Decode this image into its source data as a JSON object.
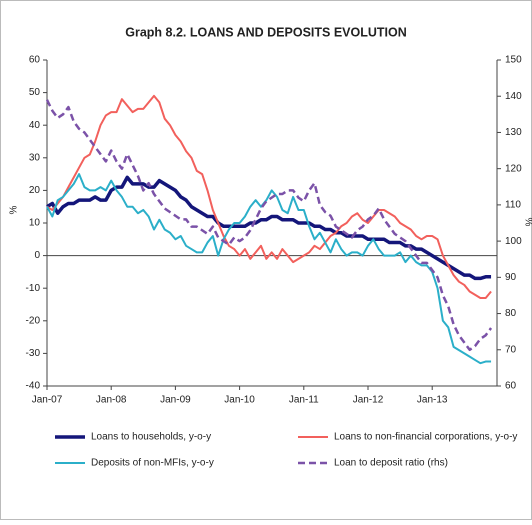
{
  "chart_data": {
    "type": "line",
    "title": "Graph 8.2. LOANS AND DEPOSITS EVOLUTION",
    "y_label": "%",
    "y2_label": "%",
    "categories": [
      "Jan-07",
      null,
      null,
      null,
      null,
      null,
      null,
      null,
      null,
      null,
      null,
      null,
      "Jan-08",
      null,
      null,
      null,
      null,
      null,
      null,
      null,
      null,
      null,
      null,
      null,
      "Jan-09",
      null,
      null,
      null,
      null,
      null,
      null,
      null,
      null,
      null,
      null,
      null,
      "Jan-10",
      null,
      null,
      null,
      null,
      null,
      null,
      null,
      null,
      null,
      null,
      null,
      "Jan-11",
      null,
      null,
      null,
      null,
      null,
      null,
      null,
      null,
      null,
      null,
      null,
      "Jan-12",
      null,
      null,
      null,
      null,
      null,
      null,
      null,
      null,
      null,
      null,
      null,
      "Jan-13",
      null,
      null,
      null,
      null,
      null,
      null,
      null,
      null,
      null,
      null,
      null
    ],
    "ylim": [
      -40,
      60
    ],
    "yticks": [
      -40,
      -30,
      -20,
      -10,
      0,
      10,
      20,
      30,
      40,
      50,
      60
    ],
    "y2lim": [
      60,
      150
    ],
    "y2ticks": [
      60,
      70,
      80,
      90,
      100,
      110,
      120,
      130,
      140,
      150
    ],
    "series": [
      {
        "name": "Loans to households, y-o-y",
        "color": "#14167a",
        "width": 3.5,
        "dashed": false,
        "values": [
          15,
          16,
          13,
          15,
          16,
          16,
          17,
          17,
          17,
          18,
          17,
          17,
          20,
          21,
          21,
          24,
          22,
          22,
          22,
          21,
          21,
          23,
          22,
          21,
          20,
          18,
          17,
          15,
          14,
          13,
          12,
          12,
          10,
          9,
          9,
          9,
          9,
          9,
          10,
          10,
          11,
          11,
          12,
          12,
          11,
          11,
          11,
          10,
          10,
          10,
          9,
          9,
          8,
          8,
          7,
          7,
          6,
          6,
          6,
          6,
          5,
          5,
          5,
          5,
          4,
          4,
          4,
          3,
          3,
          2,
          2,
          1,
          0,
          -1,
          -2,
          -3,
          -4,
          -5,
          -6,
          -6,
          -7,
          -7,
          -6.5,
          -6.5
        ]
      },
      {
        "name": "Loans to non-financial corporations, y-o-y",
        "color": "#f2605c",
        "width": 2,
        "dashed": false,
        "values": [
          15,
          14,
          16,
          18,
          21,
          24,
          27,
          30,
          31,
          35,
          40,
          43,
          44,
          44,
          48,
          46,
          44,
          45,
          45,
          47,
          49,
          47,
          42,
          40,
          37,
          35,
          32,
          30,
          26,
          25,
          20,
          14,
          10,
          6,
          3,
          2,
          0,
          2,
          -1,
          1,
          3,
          -1,
          1,
          -1,
          2,
          0,
          -2,
          -1,
          0,
          1,
          3,
          2,
          4,
          6,
          7,
          9,
          10,
          12,
          13,
          11,
          10,
          12,
          14,
          14,
          13,
          12,
          10,
          9,
          8,
          6,
          5,
          6,
          6,
          5,
          0,
          -3,
          -6,
          -8,
          -9,
          -11,
          -12,
          -13,
          -13,
          -11
        ]
      },
      {
        "name": "Deposits of non-MFIs, y-o-y",
        "color": "#2bafc9",
        "width": 2,
        "dashed": false,
        "values": [
          15,
          12,
          17,
          18,
          20,
          22,
          25,
          21,
          20,
          20,
          21,
          20,
          23,
          20,
          18,
          15,
          15,
          13,
          14,
          12,
          8,
          11,
          8,
          7,
          5,
          6,
          3,
          2,
          1,
          1,
          4,
          6,
          0,
          5,
          8,
          10,
          10,
          12,
          15,
          17,
          15,
          17,
          20,
          18,
          14,
          13,
          18,
          14,
          14,
          9,
          5,
          7,
          4,
          1,
          5,
          2,
          0,
          1,
          1,
          0,
          3,
          5,
          2,
          0,
          0,
          0,
          1,
          -2,
          0,
          -2,
          -3,
          -3,
          -5,
          -10,
          -20,
          -22,
          -28,
          -29,
          -30,
          -31,
          -32,
          -33,
          -32.5,
          -32.5
        ]
      },
      {
        "name": "Loan to deposit ratio (rhs)",
        "color": "#7b52a8",
        "width": 2.5,
        "dashed": true,
        "axis": "y2",
        "values": [
          139,
          136,
          134,
          135,
          137,
          133,
          131,
          130,
          128,
          126,
          124,
          122,
          125,
          122,
          120,
          124,
          121,
          118,
          114,
          116,
          113,
          111,
          109,
          108,
          107,
          106,
          106,
          104,
          104,
          103,
          102,
          104,
          101,
          100,
          99,
          101,
          100,
          101,
          103,
          106,
          109,
          111,
          112,
          113,
          113,
          114,
          114,
          112,
          111,
          114,
          116,
          110,
          108,
          107,
          104,
          103,
          102,
          101,
          103,
          104,
          106,
          107,
          109,
          106,
          104,
          102,
          101,
          100,
          98,
          96,
          94,
          94,
          92,
          90,
          85,
          82,
          77,
          74,
          72,
          70,
          71,
          73,
          74,
          76
        ]
      }
    ]
  }
}
